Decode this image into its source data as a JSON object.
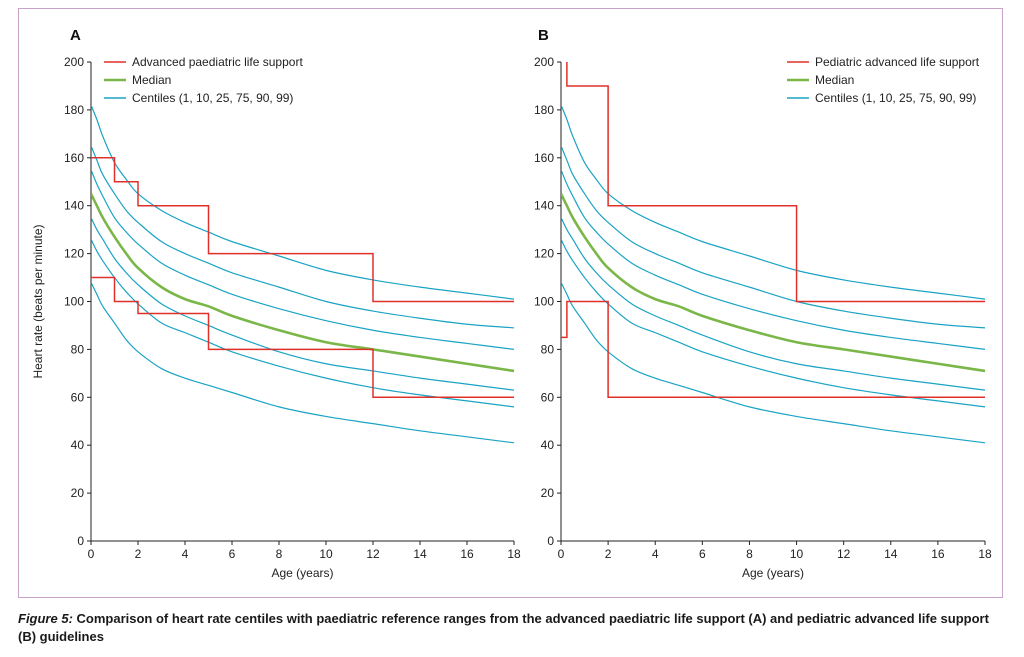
{
  "caption": {
    "label": "Figure 5:",
    "text": "Comparison of heart rate centiles with paediatric reference ranges from the advanced paediatric life support (A) and pediatric advanced life support (B) guidelines"
  },
  "colors": {
    "guideline": "#e0302a",
    "median": "#7ab648",
    "centile": "#1aa3c4",
    "axis": "#222222"
  },
  "chart_data": [
    {
      "type": "line",
      "panel_label": "A",
      "xlabel": "Age (years)",
      "ylabel": "Heart rate (beats per minute)",
      "xlim": [
        0,
        18
      ],
      "ylim": [
        0,
        200
      ],
      "xticks": [
        0,
        2,
        4,
        6,
        8,
        10,
        12,
        14,
        16,
        18
      ],
      "yticks": [
        0,
        20,
        40,
        60,
        80,
        100,
        120,
        140,
        160,
        180,
        200
      ],
      "legend_position": "top-center",
      "legend": [
        {
          "key": "guideline",
          "label": "Advanced paediatric life support"
        },
        {
          "key": "median",
          "label": "Median"
        },
        {
          "key": "centile",
          "label": "Centiles (1, 10, 25, 75, 90, 99)"
        }
      ],
      "x": [
        0,
        0.25,
        0.5,
        1,
        1.5,
        2,
        3,
        4,
        5,
        6,
        8,
        10,
        12,
        14,
        16,
        18
      ],
      "series": [
        {
          "name": "1st centile",
          "kind": "centile",
          "values": [
            108,
            103,
            98,
            91,
            84,
            79,
            72,
            68,
            65,
            62,
            56,
            52,
            49,
            46,
            43.5,
            41
          ]
        },
        {
          "name": "10th centile",
          "kind": "centile",
          "values": [
            126,
            121,
            117,
            110,
            104,
            99,
            91,
            87,
            83,
            79,
            73,
            68,
            64,
            61,
            58.5,
            56
          ]
        },
        {
          "name": "25th centile",
          "kind": "centile",
          "values": [
            135,
            130,
            126,
            118,
            112,
            107,
            99,
            94,
            90,
            86,
            79,
            74,
            71,
            68,
            65.5,
            63
          ]
        },
        {
          "name": "Median",
          "kind": "median",
          "values": [
            145,
            140,
            135,
            127,
            120,
            114,
            106,
            101,
            98,
            94,
            88,
            83,
            80,
            77,
            74,
            71
          ]
        },
        {
          "name": "75th centile",
          "kind": "centile",
          "values": [
            155,
            149,
            144,
            135,
            129,
            124,
            116,
            111,
            107,
            103,
            97,
            92,
            88,
            85,
            82.5,
            80
          ]
        },
        {
          "name": "90th centile",
          "kind": "centile",
          "values": [
            165,
            159,
            153,
            145,
            138,
            133,
            125,
            120,
            116,
            112,
            106,
            100,
            96,
            93,
            90.5,
            89
          ]
        },
        {
          "name": "99th centile",
          "kind": "centile",
          "values": [
            182,
            176,
            169,
            158,
            151,
            145,
            138,
            133,
            129,
            125,
            119,
            113,
            109,
            106,
            103.5,
            101
          ]
        }
      ],
      "guideline_segments": [
        {
          "name": "upper",
          "x": [
            0,
            1,
            1,
            2,
            2,
            5,
            5,
            12,
            12,
            18
          ],
          "y": [
            160,
            160,
            150,
            150,
            140,
            140,
            120,
            120,
            100,
            100
          ]
        },
        {
          "name": "lower",
          "x": [
            0,
            1,
            1,
            2,
            2,
            5,
            5,
            12,
            12,
            18
          ],
          "y": [
            110,
            110,
            100,
            100,
            95,
            95,
            80,
            80,
            60,
            60
          ]
        }
      ]
    },
    {
      "type": "line",
      "panel_label": "B",
      "xlabel": "Age (years)",
      "ylabel": "",
      "xlim": [
        0,
        18
      ],
      "ylim": [
        0,
        200
      ],
      "xticks": [
        0,
        2,
        4,
        6,
        8,
        10,
        12,
        14,
        16,
        18
      ],
      "yticks": [
        0,
        20,
        40,
        60,
        80,
        100,
        120,
        140,
        160,
        180,
        200
      ],
      "legend_position": "top-right",
      "legend": [
        {
          "key": "guideline",
          "label": "Pediatric advanced life support"
        },
        {
          "key": "median",
          "label": "Median"
        },
        {
          "key": "centile",
          "label": "Centiles (1, 10, 25, 75, 90, 99)"
        }
      ],
      "x": [
        0,
        0.25,
        0.5,
        1,
        1.5,
        2,
        3,
        4,
        5,
        6,
        8,
        10,
        12,
        14,
        16,
        18
      ],
      "series": [
        {
          "name": "1st centile",
          "kind": "centile",
          "values": [
            108,
            103,
            98,
            91,
            84,
            79,
            72,
            68,
            65,
            62,
            56,
            52,
            49,
            46,
            43.5,
            41
          ]
        },
        {
          "name": "10th centile",
          "kind": "centile",
          "values": [
            126,
            121,
            117,
            110,
            104,
            99,
            91,
            87,
            83,
            79,
            73,
            68,
            64,
            61,
            58.5,
            56
          ]
        },
        {
          "name": "25th centile",
          "kind": "centile",
          "values": [
            135,
            130,
            126,
            118,
            112,
            107,
            99,
            94,
            90,
            86,
            79,
            74,
            71,
            68,
            65.5,
            63
          ]
        },
        {
          "name": "Median",
          "kind": "median",
          "values": [
            145,
            140,
            135,
            127,
            120,
            114,
            106,
            101,
            98,
            94,
            88,
            83,
            80,
            77,
            74,
            71
          ]
        },
        {
          "name": "75th centile",
          "kind": "centile",
          "values": [
            155,
            149,
            144,
            135,
            129,
            124,
            116,
            111,
            107,
            103,
            97,
            92,
            88,
            85,
            82.5,
            80
          ]
        },
        {
          "name": "90th centile",
          "kind": "centile",
          "values": [
            165,
            159,
            153,
            145,
            138,
            133,
            125,
            120,
            116,
            112,
            106,
            100,
            96,
            93,
            90.5,
            89
          ]
        },
        {
          "name": "99th centile",
          "kind": "centile",
          "values": [
            182,
            176,
            169,
            158,
            151,
            145,
            138,
            133,
            129,
            125,
            119,
            113,
            109,
            106,
            103.5,
            101
          ]
        }
      ],
      "guideline_segments": [
        {
          "name": "upper",
          "x": [
            0.25,
            0.25,
            2,
            2,
            10,
            10,
            18
          ],
          "y": [
            200,
            190,
            190,
            140,
            140,
            100,
            100
          ]
        },
        {
          "name": "lower",
          "x": [
            0,
            0.25,
            0.25,
            2,
            2,
            18
          ],
          "y": [
            85,
            85,
            100,
            100,
            60,
            60
          ]
        }
      ]
    }
  ]
}
